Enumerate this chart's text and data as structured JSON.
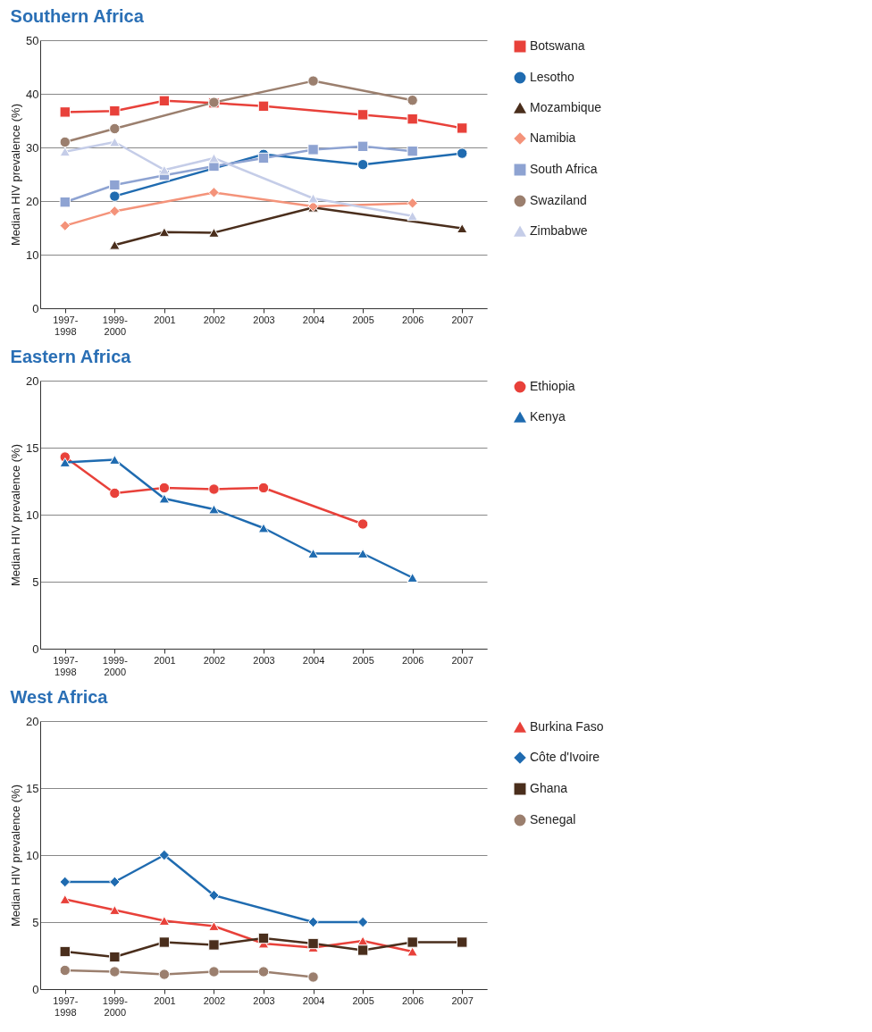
{
  "chart_data": [
    {
      "type": "line",
      "title": "Southern Africa",
      "ylabel": "Median HIV prevalence (%)",
      "categories": [
        "1997-1998",
        "1999-2000",
        "2001",
        "2002",
        "2003",
        "2004",
        "2005",
        "2006",
        "2007"
      ],
      "ylim": [
        0,
        50
      ],
      "yticks": [
        0,
        10,
        20,
        30,
        40,
        50
      ],
      "grid": "y",
      "legend": "right",
      "line_style": "solid",
      "series": [
        {
          "name": "Botswana",
          "color": "#e8413a",
          "marker": "square",
          "values": [
            36.6,
            36.8,
            38.7,
            38.3,
            37.7,
            null,
            36.1,
            35.3,
            33.6
          ]
        },
        {
          "name": "Lesotho",
          "color": "#1f6bb0",
          "marker": "circle",
          "values": [
            null,
            20.9,
            null,
            null,
            28.7,
            null,
            26.8,
            null,
            28.9
          ]
        },
        {
          "name": "Mozambique",
          "color": "#4a2e1c",
          "marker": "triangle",
          "values": [
            null,
            11.8,
            14.2,
            14.1,
            null,
            18.8,
            null,
            null,
            14.9
          ]
        },
        {
          "name": "Namibia",
          "color": "#f4937a",
          "marker": "diamond",
          "values": [
            15.4,
            18.1,
            null,
            21.6,
            null,
            19.0,
            null,
            19.6,
            null
          ]
        },
        {
          "name": "South Africa",
          "color": "#8ea3d2",
          "marker": "square",
          "values": [
            19.8,
            23.0,
            24.8,
            26.5,
            28.0,
            29.6,
            30.2,
            29.3,
            null
          ]
        },
        {
          "name": "Swaziland",
          "color": "#9b7f6e",
          "marker": "circle",
          "values": [
            31.0,
            33.5,
            null,
            38.4,
            null,
            42.4,
            null,
            38.8,
            null
          ]
        },
        {
          "name": "Zimbabwe",
          "color": "#c5cde8",
          "marker": "triangle",
          "values": [
            29.2,
            31.0,
            25.8,
            28.0,
            null,
            20.5,
            null,
            17.2,
            null
          ]
        }
      ]
    },
    {
      "type": "line",
      "title": "Eastern Africa",
      "ylabel": "Median HIV prevalence (%)",
      "categories": [
        "1997-1998",
        "1999-2000",
        "2001",
        "2002",
        "2003",
        "2004",
        "2005",
        "2006",
        "2007"
      ],
      "ylim": [
        0,
        20
      ],
      "yticks": [
        0,
        5,
        10,
        15,
        20
      ],
      "grid": "y",
      "legend": "right",
      "line_style": "solid",
      "series": [
        {
          "name": "Ethiopia",
          "color": "#e8413a",
          "marker": "circle",
          "values": [
            14.3,
            11.6,
            12.0,
            11.9,
            12.0,
            null,
            9.3,
            null,
            null
          ]
        },
        {
          "name": "Kenya",
          "color": "#1f6bb0",
          "marker": "triangle",
          "values": [
            13.9,
            14.1,
            11.2,
            10.4,
            9.0,
            7.1,
            7.1,
            5.3,
            null
          ]
        }
      ]
    },
    {
      "type": "line",
      "title": "West Africa",
      "ylabel": "Median HIV prevalence (%)",
      "categories": [
        "1997-1998",
        "1999-2000",
        "2001",
        "2002",
        "2003",
        "2004",
        "2005",
        "2006",
        "2007"
      ],
      "ylim": [
        0,
        20
      ],
      "yticks": [
        0,
        5,
        10,
        15,
        20
      ],
      "grid": "y",
      "legend": "right",
      "line_style": "solid",
      "series": [
        {
          "name": "Burkina Faso",
          "color": "#e8413a",
          "marker": "triangle",
          "values": [
            6.7,
            5.9,
            5.1,
            4.7,
            3.4,
            3.1,
            3.6,
            2.8,
            null
          ]
        },
        {
          "name": "Côte d'Ivoire",
          "color": "#1f6bb0",
          "marker": "diamond",
          "values": [
            8.0,
            8.0,
            10.0,
            7.0,
            null,
            5.0,
            5.0,
            null,
            null
          ]
        },
        {
          "name": "Ghana",
          "color": "#4a2e1c",
          "marker": "square",
          "values": [
            2.8,
            2.4,
            3.5,
            3.3,
            3.8,
            3.4,
            2.9,
            3.5,
            3.5
          ]
        },
        {
          "name": "Senegal",
          "color": "#9b7f6e",
          "marker": "circle",
          "values": [
            1.4,
            1.3,
            1.1,
            1.3,
            1.3,
            0.9,
            null,
            null,
            null
          ]
        }
      ]
    }
  ]
}
